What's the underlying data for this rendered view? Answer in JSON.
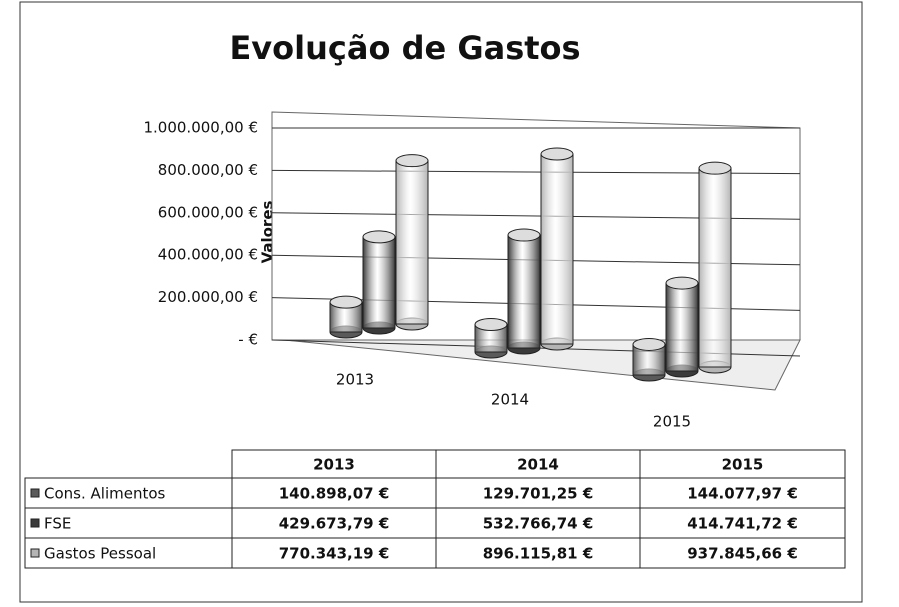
{
  "chart_data": {
    "type": "bar3d",
    "title": "Evolução de Gastos",
    "y_label": "Valores",
    "categories": [
      "2013",
      "2014",
      "2015"
    ],
    "series": [
      {
        "name": "Cons. Alimentos",
        "color": "#5a5a5a",
        "values": [
          140898.07,
          129701.25,
          144077.97
        ],
        "value_labels": [
          "140.898,07 €",
          "129.701,25 €",
          "144.077,97 €"
        ]
      },
      {
        "name": "FSE",
        "color": "#3a3a3a",
        "values": [
          429673.79,
          532766.74,
          414741.72
        ],
        "value_labels": [
          "429.673,79 €",
          "532.766,74 €",
          "414.741,72 €"
        ]
      },
      {
        "name": "Gastos Pessoal",
        "color": "#b4b4b4",
        "values": [
          770343.19,
          896115.81,
          937845.66
        ],
        "value_labels": [
          "770.343,19 €",
          "896.115,81 €",
          "937.845,66 €"
        ]
      }
    ],
    "ylim": [
      0,
      1000000
    ],
    "yticks": [
      {
        "value": 0,
        "label": "-  €"
      },
      {
        "value": 200000,
        "label": "200.000,00 €"
      },
      {
        "value": 400000,
        "label": "400.000,00 €"
      },
      {
        "value": 600000,
        "label": "600.000,00 €"
      },
      {
        "value": 800000,
        "label": "800.000,00 €"
      },
      {
        "value": 1000000,
        "label": "1.000.000,00 €"
      }
    ],
    "grid": true
  }
}
